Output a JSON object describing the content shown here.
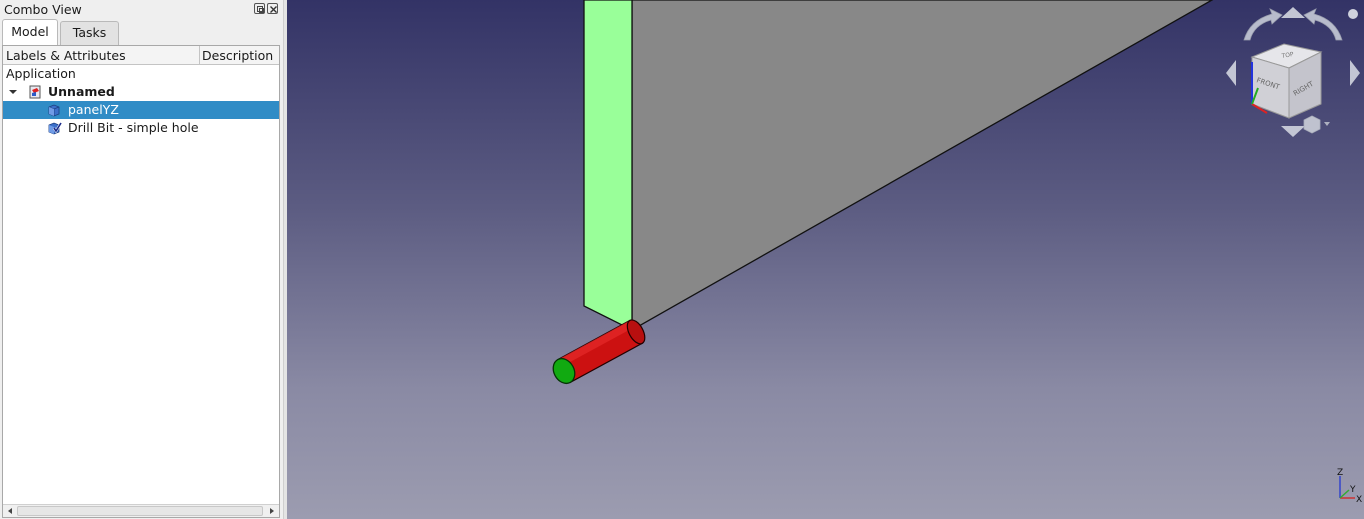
{
  "panel": {
    "title": "Combo View",
    "float_button_icon": "float-icon",
    "close_button_icon": "close-icon",
    "tabs": [
      {
        "label": "Model",
        "active": true
      },
      {
        "label": "Tasks",
        "active": false
      }
    ]
  },
  "tree": {
    "columns": [
      "Labels & Attributes",
      "Description"
    ],
    "rows": [
      {
        "label": "Application",
        "level": 0,
        "icon": "",
        "bold": false,
        "selected": false
      },
      {
        "label": "Unnamed",
        "level": 1,
        "icon": "document-icon",
        "bold": true,
        "selected": false,
        "expanded": true
      },
      {
        "label": "panelYZ",
        "level": 2,
        "icon": "box-icon",
        "bold": false,
        "selected": true
      },
      {
        "label": "Drill Bit - simple hole",
        "level": 2,
        "icon": "drill-bit-icon",
        "bold": false,
        "selected": false
      }
    ]
  },
  "viewport": {
    "background_top": "#333366",
    "background_bottom": "#9c9cb0",
    "panel_face_color": "#99ff99",
    "panel_side_color": "#888888",
    "drill_body_color": "#cc1111",
    "drill_tip_color": "#11aa11",
    "navcube": {
      "faces": [
        "TOP",
        "FRONT",
        "RIGHT"
      ],
      "icons": [
        "rotate-left-icon",
        "rotate-right-icon",
        "arrow-up-icon",
        "arrow-down-icon",
        "arrow-left-icon",
        "arrow-right-icon",
        "view-menu-icon"
      ]
    },
    "axis_labels": {
      "z": "Z",
      "y": "Y",
      "x": "X"
    }
  }
}
